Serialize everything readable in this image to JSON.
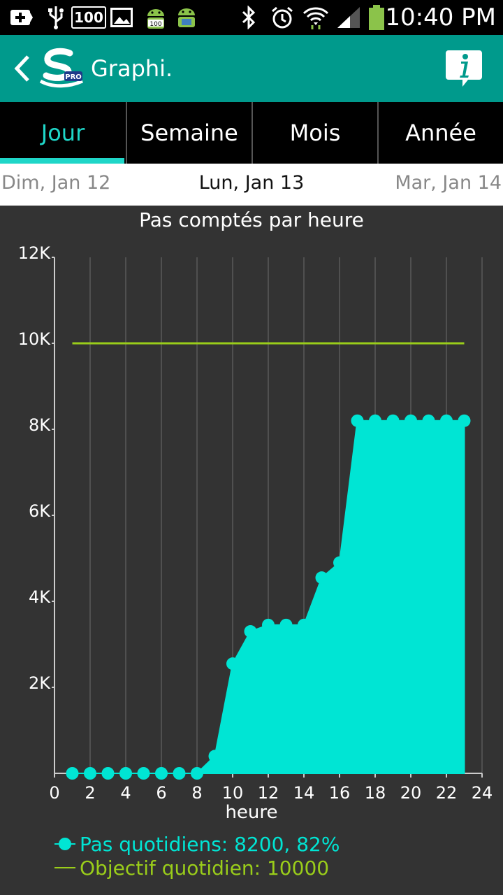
{
  "status_bar": {
    "time": "10:40 PM",
    "notif_badge": "100",
    "icons": [
      "plus-box-icon",
      "usb-icon",
      "battery-100-badge-icon",
      "image-icon",
      "android-icon",
      "android-alt-icon",
      "bluetooth-icon",
      "alarm-icon",
      "wifi-icon",
      "signal-icon",
      "battery-icon"
    ]
  },
  "app_bar": {
    "title": "Graphi.",
    "logo_badge": "PRO",
    "bg_color": "#009a8c",
    "info_icon": "info-icon"
  },
  "tabs": [
    {
      "label": "Jour",
      "active": true
    },
    {
      "label": "Semaine",
      "active": false
    },
    {
      "label": "Mois",
      "active": false
    },
    {
      "label": "Année",
      "active": false
    }
  ],
  "date_nav": {
    "prev": "Dim, Jan 12",
    "current": "Lun, Jan 13",
    "next": "Mar, Jan 14"
  },
  "chart_data": {
    "type": "area",
    "title": "Pas comptés par heure",
    "xlabel": "heure",
    "ylabel": "",
    "xlim": [
      0,
      24
    ],
    "ylim": [
      0,
      12000
    ],
    "x_ticks": [
      "0",
      "2",
      "4",
      "6",
      "8",
      "10",
      "12",
      "14",
      "16",
      "18",
      "20",
      "22",
      "24"
    ],
    "y_ticks": [
      "2K",
      "4K",
      "6K",
      "8K",
      "10K",
      "12K"
    ],
    "grid": true,
    "series": [
      {
        "name": "Pas quotidiens",
        "color": "#00e5d4",
        "x": [
          1,
          2,
          3,
          4,
          5,
          6,
          7,
          8,
          9,
          10,
          11,
          12,
          13,
          14,
          15,
          16,
          17,
          18,
          19,
          20,
          21,
          22,
          23
        ],
        "y": [
          0,
          0,
          0,
          0,
          0,
          0,
          0,
          0,
          400,
          2550,
          3300,
          3450,
          3450,
          3450,
          4550,
          4900,
          8200,
          8200,
          8200,
          8200,
          8200,
          8200,
          8200
        ]
      },
      {
        "name": "Objectif quotidien",
        "color": "#9acd1a",
        "x": [
          1,
          23
        ],
        "y": [
          10000,
          10000
        ]
      }
    ],
    "legend": [
      {
        "label": "Pas quotidiens:  8200, 82%",
        "color": "#00e5d4"
      },
      {
        "label": "Objectif quotidien:  10000",
        "color": "#9acd1a"
      }
    ],
    "legend_position": "bottom-left"
  }
}
